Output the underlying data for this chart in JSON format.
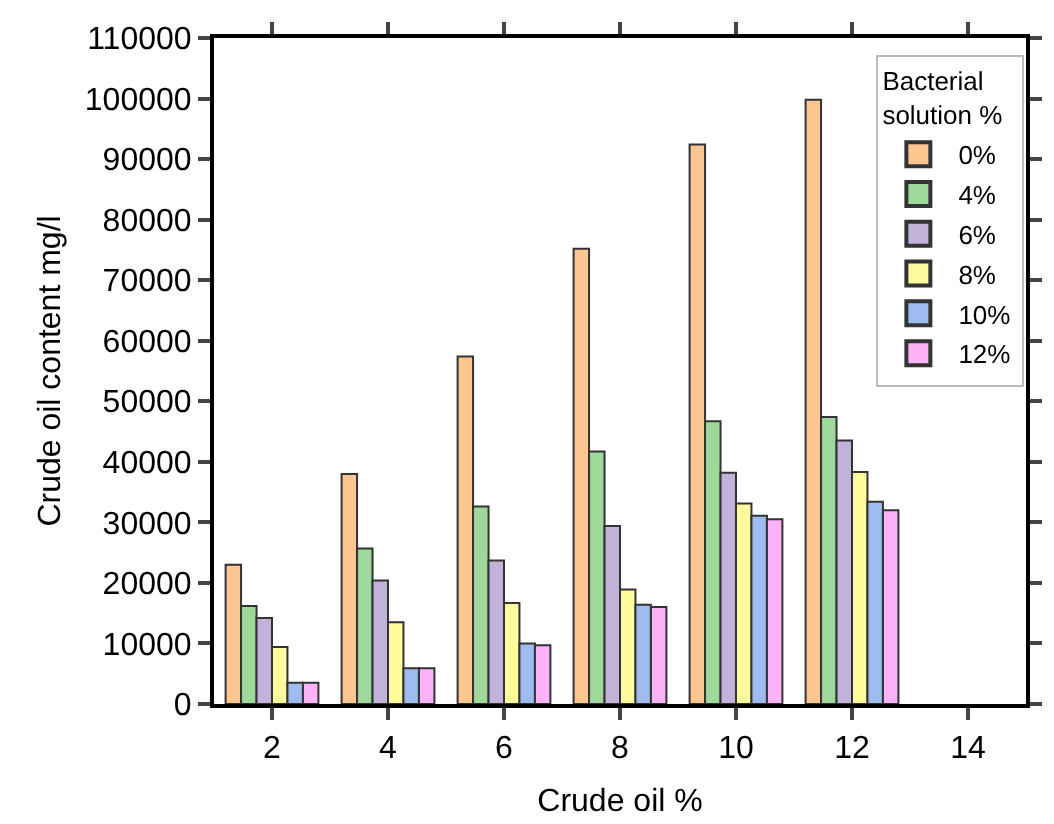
{
  "chart_data": {
    "type": "bar",
    "xlabel": "Crude oil %",
    "ylabel": "Crude oil content mg/l",
    "legend_title": "Bacterial solution %",
    "x": [
      2,
      4,
      6,
      8,
      10,
      12
    ],
    "xlim": [
      1,
      15
    ],
    "xticks": [
      2,
      4,
      6,
      8,
      10,
      12,
      14
    ],
    "ylim": [
      0,
      110000
    ],
    "yticks": [
      0,
      10000,
      20000,
      30000,
      40000,
      50000,
      60000,
      70000,
      80000,
      90000,
      100000,
      110000
    ],
    "grid": false,
    "legend": "top right",
    "series": [
      {
        "name": "0%",
        "color": "#fdc590",
        "values": [
          23000,
          38000,
          57400,
          75200,
          92400,
          99800
        ]
      },
      {
        "name": "4%",
        "color": "#9fd89b",
        "values": [
          16200,
          25700,
          32600,
          41700,
          46700,
          47400
        ]
      },
      {
        "name": "6%",
        "color": "#c2b1d8",
        "values": [
          14200,
          20400,
          23700,
          29400,
          38200,
          43500
        ]
      },
      {
        "name": "8%",
        "color": "#fdfb9b",
        "values": [
          9400,
          13500,
          16700,
          18900,
          33100,
          38300
        ]
      },
      {
        "name": "10%",
        "color": "#9ebcf0",
        "values": [
          3500,
          5900,
          10000,
          16400,
          31100,
          33400
        ]
      },
      {
        "name": "12%",
        "color": "#fdb3f7",
        "values": [
          3500,
          5900,
          9700,
          16000,
          30500,
          32000
        ]
      }
    ]
  }
}
